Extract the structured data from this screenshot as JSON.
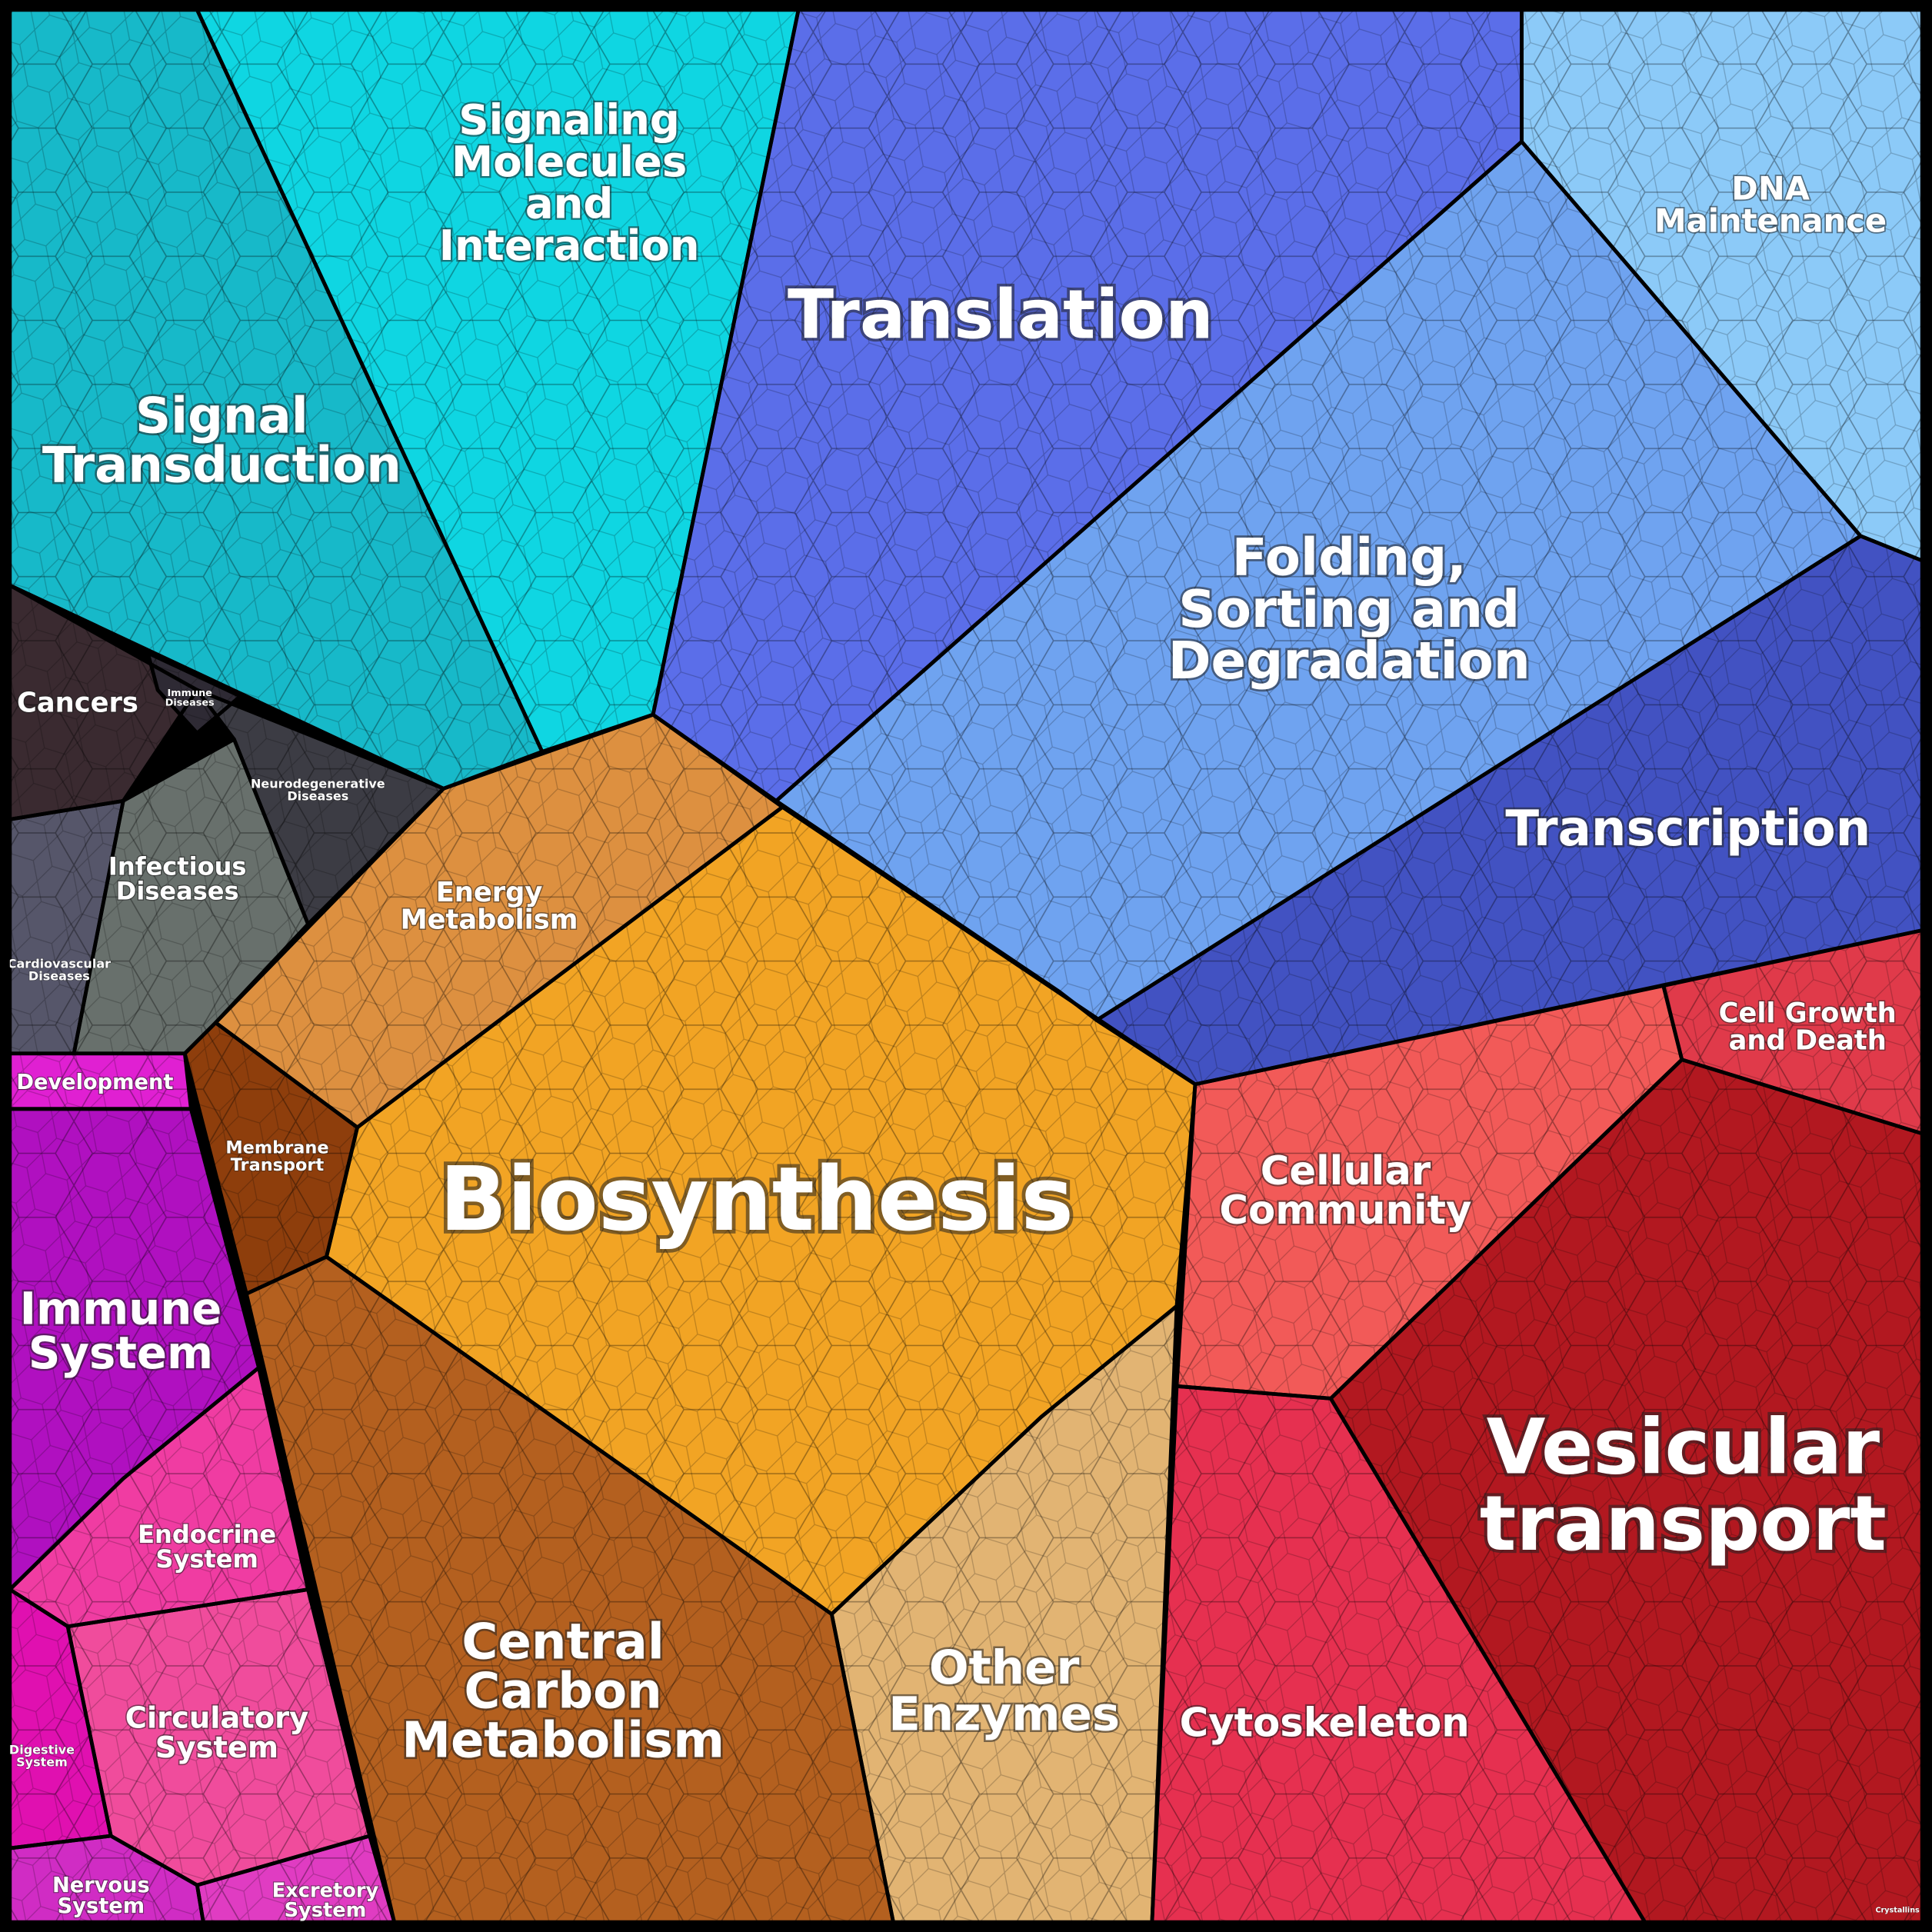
{
  "regions": [
    {
      "lines": [
        "Signal",
        "Transduction"
      ]
    },
    {
      "lines": [
        "Signaling",
        "Molecules",
        "and",
        "Interaction"
      ]
    },
    {
      "lines": [
        "Translation"
      ]
    },
    {
      "lines": [
        "DNA",
        "Maintenance"
      ]
    },
    {
      "lines": [
        "Folding,",
        "Sorting and",
        "Degradation"
      ]
    },
    {
      "lines": [
        "Transcription"
      ]
    },
    {
      "lines": [
        "Cancers"
      ]
    },
    {
      "lines": [
        "Immune",
        "Diseases"
      ]
    },
    {
      "lines": [
        "Neurodegenerative",
        "Diseases"
      ]
    },
    {
      "lines": [
        "Infectious",
        "Diseases"
      ]
    },
    {
      "lines": [
        "Cardiovascular",
        "Diseases"
      ]
    },
    {
      "lines": [
        "Energy",
        "Metabolism"
      ]
    },
    {
      "lines": [
        "Membrane",
        "Transport"
      ]
    },
    {
      "lines": [
        "Biosynthesis"
      ]
    },
    {
      "lines": [
        "Central",
        "Carbon",
        "Metabolism"
      ]
    },
    {
      "lines": [
        "Other",
        "Enzymes"
      ]
    },
    {
      "lines": [
        "Cellular",
        "Community"
      ]
    },
    {
      "lines": [
        "Cell Growth",
        "and Death"
      ]
    },
    {
      "lines": [
        "Vesicular",
        "transport"
      ]
    },
    {
      "lines": [
        "Cytoskeleton"
      ]
    },
    {
      "lines": [
        "Development"
      ]
    },
    {
      "lines": [
        "Immune",
        "System"
      ]
    },
    {
      "lines": [
        "Endocrine",
        "System"
      ]
    },
    {
      "lines": [
        "Circulatory",
        "System"
      ]
    },
    {
      "lines": [
        "Digestive",
        "System"
      ]
    },
    {
      "lines": [
        "Nervous",
        "System"
      ]
    },
    {
      "lines": [
        "Excretory",
        "System"
      ]
    },
    {
      "lines": [
        "Crystallins"
      ]
    }
  ]
}
